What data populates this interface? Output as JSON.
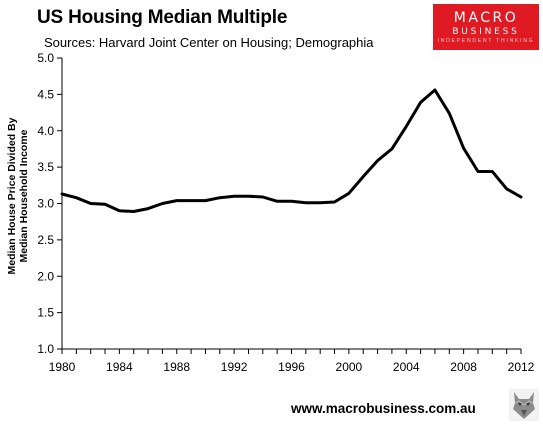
{
  "header": {
    "title": "US Housing Median Multiple",
    "subtitle": "Sources: Harvard Joint Center on Housing; Demographia"
  },
  "logo": {
    "line1": "MACRO",
    "line2": "BUSINESS",
    "line3": "INDEPENDENT THINKING"
  },
  "footer": {
    "url": "www.macrobusiness.com.au"
  },
  "colors": {
    "brand_red": "#e01a22",
    "line": "#000000"
  },
  "chart_data": {
    "type": "line",
    "title": "US Housing Median Multiple",
    "xlabel": "",
    "ylabel_lines": [
      "Median House Price Divided By",
      "Median Household Income"
    ],
    "xlim": [
      1980,
      2012
    ],
    "ylim": [
      1.0,
      5.0
    ],
    "x_ticks": [
      1980,
      1984,
      1988,
      1992,
      1996,
      2000,
      2004,
      2008,
      2012
    ],
    "y_ticks": [
      "1.0",
      "1.5",
      "2.0",
      "2.5",
      "3.0",
      "3.5",
      "4.0",
      "4.5",
      "5.0"
    ],
    "grid": false,
    "legend": "none",
    "series": [
      {
        "x": [
          1980,
          1981,
          1982,
          1983,
          1984,
          1985,
          1986,
          1987,
          1988,
          1989,
          1990,
          1991,
          1992,
          1993,
          1994,
          1995,
          1996,
          1997,
          1998,
          1999,
          2000,
          2001,
          2002,
          2003,
          2004,
          2005,
          2006,
          2007,
          2008,
          2009,
          2010,
          2011,
          2012
        ],
        "y": [
          3.13,
          3.08,
          3.0,
          2.99,
          2.9,
          2.89,
          2.93,
          3.0,
          3.04,
          3.04,
          3.04,
          3.08,
          3.1,
          3.1,
          3.09,
          3.03,
          3.03,
          3.01,
          3.01,
          3.02,
          3.14,
          3.37,
          3.59,
          3.75,
          4.06,
          4.39,
          4.56,
          4.24,
          3.76,
          3.44,
          3.44,
          3.2,
          3.09
        ]
      }
    ]
  }
}
